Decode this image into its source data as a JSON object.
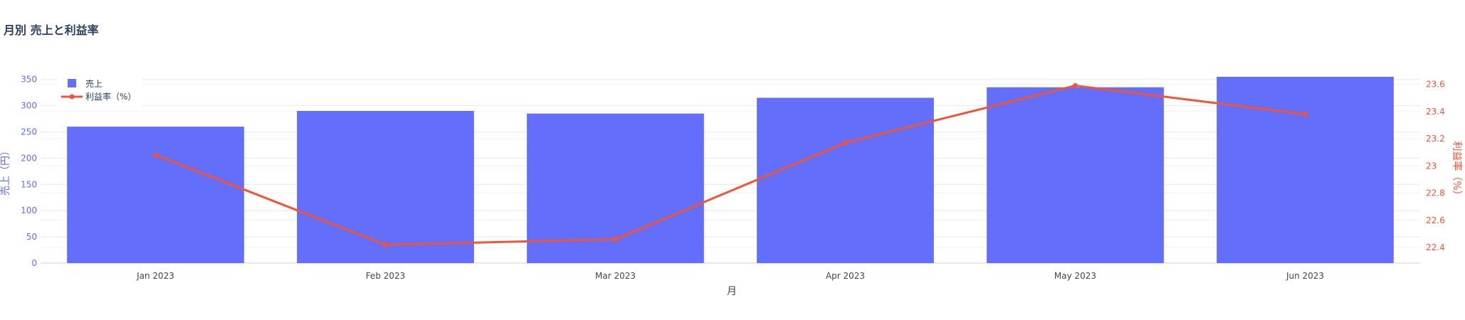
{
  "chart_data": {
    "type": "bar",
    "title": "月別 売上と利益率",
    "xlabel": "月",
    "categories": [
      "Jan 2023",
      "Feb 2023",
      "Mar 2023",
      "Apr 2023",
      "May 2023",
      "Jun 2023"
    ],
    "series": [
      {
        "name": "売上",
        "type": "bar",
        "axis": "left",
        "values": [
          260,
          290,
          285,
          315,
          335,
          355
        ],
        "color": "#636efa"
      },
      {
        "name": "利益率（%）",
        "type": "line",
        "axis": "right",
        "values": [
          23.08,
          22.42,
          22.46,
          23.17,
          23.59,
          23.38
        ],
        "color": "#EF553B"
      }
    ],
    "y_left": {
      "label": "売上（円）",
      "range": [
        0,
        355
      ],
      "ticks": [
        0,
        50,
        100,
        150,
        200,
        250,
        300,
        350
      ],
      "tick_labels": [
        "0",
        "50",
        "100",
        "150",
        "200",
        "250",
        "300",
        "350"
      ]
    },
    "y_right": {
      "label": "利益率（%）",
      "range": [
        22.285,
        23.655
      ],
      "ticks": [
        22.4,
        22.6,
        22.8,
        23.0,
        23.2,
        23.4,
        23.6
      ],
      "tick_labels": [
        "22.4",
        "22.6",
        "22.8",
        "23",
        "23.2",
        "23.4",
        "23.6"
      ]
    },
    "grid": true,
    "legend_position": "top-left"
  }
}
